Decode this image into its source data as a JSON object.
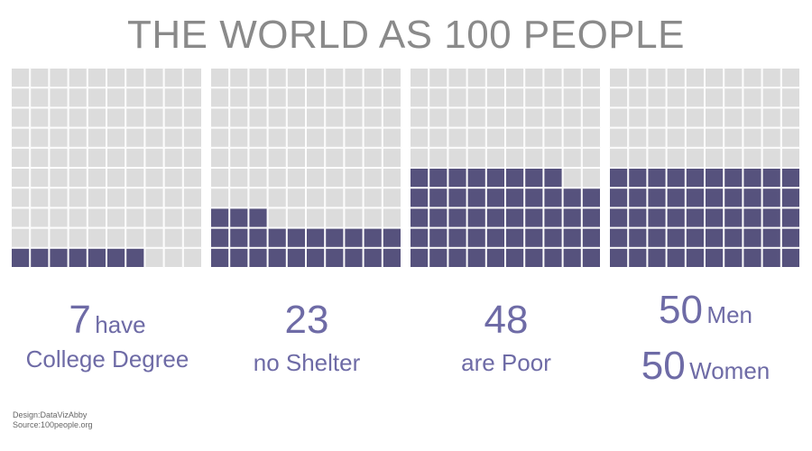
{
  "title": "THE WORLD AS 100 PEOPLE",
  "colors": {
    "filled": "#56527d",
    "empty": "#dcdcdc",
    "grid_line": "#ffffff",
    "frame": "#bdbdbd",
    "label": "#6e6ba6",
    "title": "#8a8a8a"
  },
  "chart_data": [
    {
      "type": "waffle",
      "total": 100,
      "value": 7,
      "number": "7",
      "label_inline": "have",
      "label_line2": "College Degree"
    },
    {
      "type": "waffle",
      "total": 100,
      "value": 23,
      "number": "23",
      "label_line2": "no Shelter"
    },
    {
      "type": "waffle",
      "total": 100,
      "value": 48,
      "number": "48",
      "label_line2": "are Poor"
    },
    {
      "type": "waffle",
      "total": 100,
      "value": 50,
      "number_a": "50",
      "label_a": "Men",
      "number_b": "50",
      "label_b": "Women"
    }
  ],
  "credits": {
    "design": "Design:DataVizAbby",
    "source": "Source:100people.org"
  }
}
